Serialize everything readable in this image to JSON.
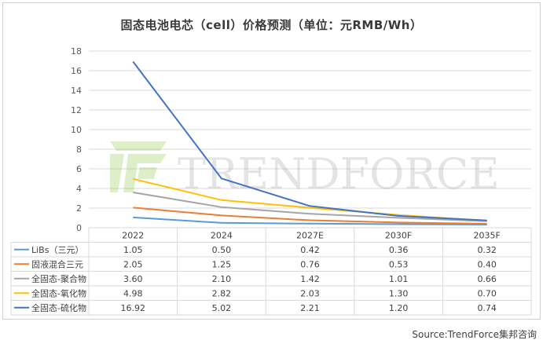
{
  "chart_data": {
    "type": "line",
    "title": "固态电池电芯（cell）价格预测（单位：元RMB/Wh）",
    "categories": [
      "2022",
      "2024",
      "2027E",
      "2030F",
      "2035F"
    ],
    "ylim": [
      0,
      18
    ],
    "yticks": [
      0,
      2,
      4,
      6,
      8,
      10,
      12,
      14,
      16,
      18
    ],
    "grid": true,
    "legend_placement": "data-table",
    "series": [
      {
        "name": "LiBs（三元）",
        "values": [
          1.05,
          0.5,
          0.42,
          0.36,
          0.32
        ],
        "color": "#5b9bd5",
        "labels": [
          "1.05",
          "0.50",
          "0.42",
          "0.36",
          "0.32"
        ]
      },
      {
        "name": "固液混合三元",
        "values": [
          2.05,
          1.25,
          0.76,
          0.53,
          0.4
        ],
        "color": "#ed7d31",
        "labels": [
          "2.05",
          "1.25",
          "0.76",
          "0.53",
          "0.40"
        ]
      },
      {
        "name": "全固态-聚合物",
        "values": [
          3.6,
          2.1,
          1.42,
          1.01,
          0.66
        ],
        "color": "#a5a5a5",
        "labels": [
          "3.60",
          "2.10",
          "1.42",
          "1.01",
          "0.66"
        ]
      },
      {
        "name": "全固态-氧化物",
        "values": [
          4.98,
          2.82,
          2.03,
          1.3,
          0.7
        ],
        "color": "#ffc000",
        "labels": [
          "4.98",
          "2.82",
          "2.03",
          "1.30",
          "0.70"
        ]
      },
      {
        "name": "全固态-硫化物",
        "values": [
          16.92,
          5.02,
          2.21,
          1.2,
          0.74
        ],
        "color": "#4472c4",
        "labels": [
          "16.92",
          "5.02",
          "2.21",
          "1.20",
          "0.74"
        ]
      }
    ]
  },
  "watermark": {
    "text": "TRENDFORCE",
    "logo_color": "#8dc63f"
  },
  "source": "Source:TrendForce集邦咨询"
}
